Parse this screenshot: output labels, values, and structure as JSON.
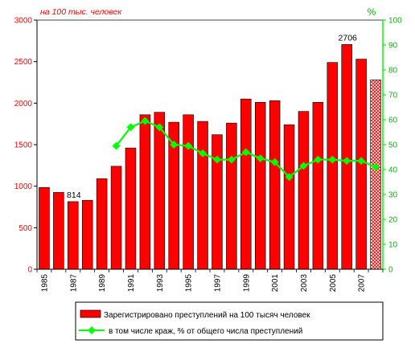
{
  "chart_data": {
    "type": "bar",
    "left_axis_note": "на 100 тыс. человек",
    "right_axis_note": "%",
    "years": [
      1985,
      1986,
      1987,
      1988,
      1989,
      1990,
      1991,
      1992,
      1993,
      1994,
      1995,
      1996,
      1997,
      1998,
      1999,
      2000,
      2001,
      2002,
      2003,
      2004,
      2005,
      2006,
      2007,
      2008
    ],
    "x_tick_labels": [
      "1985",
      "",
      "1987",
      "",
      "1989",
      "",
      "1991",
      "",
      "1993",
      "",
      "1995",
      "",
      "1997",
      "",
      "1999",
      "",
      "2001",
      "",
      "2003",
      "",
      "2005",
      "",
      "2007",
      ""
    ],
    "series": [
      {
        "name": "Зарегистрировано преступлений на 100 тысяч человек",
        "kind": "bar",
        "axis": "left",
        "values": [
          985,
          925,
          814,
          830,
          1090,
          1240,
          1460,
          1860,
          1890,
          1770,
          1860,
          1780,
          1620,
          1760,
          2050,
          2010,
          2030,
          1740,
          1900,
          2010,
          2490,
          2706,
          2530,
          2280
        ],
        "hatched_last": true
      },
      {
        "name": "в том числе краж, % от общего числа преступлений",
        "kind": "line",
        "axis": "right",
        "x_years": [
          1990,
          1991,
          1992,
          1993,
          1994,
          1995,
          1996,
          1997,
          1998,
          1999,
          2000,
          2001,
          2002,
          2003,
          2004,
          2005,
          2006,
          2007,
          2008
        ],
        "values": [
          49.5,
          57,
          59.5,
          57,
          50,
          49.5,
          46.5,
          44,
          44,
          47,
          44.5,
          43,
          37,
          41.5,
          44,
          44,
          43.5,
          43.5,
          41
        ]
      }
    ],
    "y_left": {
      "min": 0,
      "max": 3000,
      "step": 500,
      "ticks": [
        "0",
        "500",
        "1000",
        "1500",
        "2000",
        "2500",
        "3000"
      ]
    },
    "y_right": {
      "min": 0,
      "max": 100,
      "step": 10,
      "ticks": [
        "0",
        "10",
        "20",
        "30",
        "40",
        "50",
        "60",
        "70",
        "80",
        "90",
        "100"
      ]
    },
    "data_labels": [
      {
        "year": 1987,
        "text": "814"
      },
      {
        "year": 2006,
        "text": "2706"
      }
    ],
    "legend": {
      "placement": "bottom"
    },
    "colors": {
      "bar": "#ff0000",
      "bar_border": "#000000",
      "line": "#00ff00",
      "left_axis_text": "#ff0000",
      "right_axis_text": "#00bb00",
      "hatch": "#ff0000"
    }
  }
}
